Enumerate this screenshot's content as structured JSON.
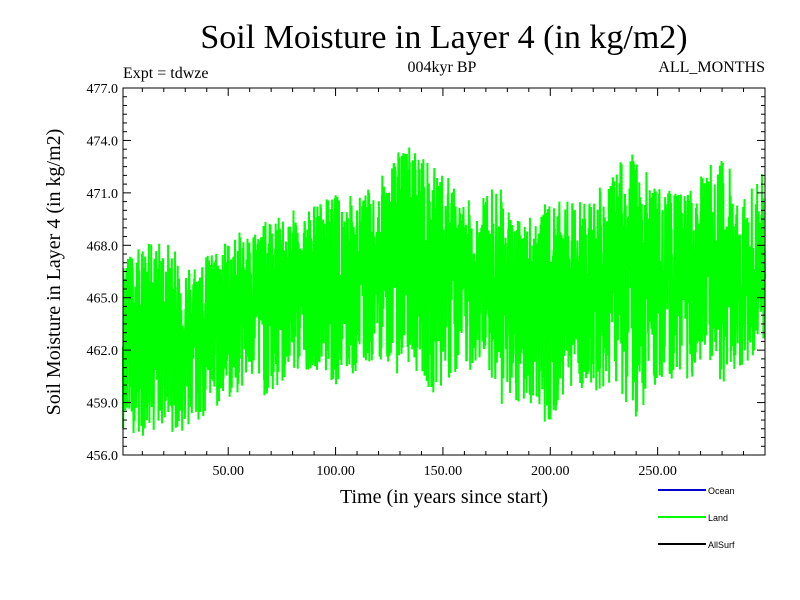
{
  "chart_data": {
    "type": "line",
    "title": "Soil Moisture in Layer 4 (in kg/m2)",
    "subtitle_left": "Expt = tdwze",
    "subtitle_center": "004kyr BP",
    "subtitle_right": "ALL_MONTHS",
    "xlabel": "Time (in years since start)",
    "ylabel": "Soil Moisture in Layer 4 (in kg/m2)",
    "xlim": [
      1,
      300
    ],
    "ylim": [
      456.0,
      477.0
    ],
    "x_ticks": [
      50,
      100,
      150,
      200,
      250
    ],
    "x_tick_labels": [
      "50.00",
      "100.00",
      "150.00",
      "200.00",
      "250.00"
    ],
    "y_ticks": [
      456,
      459,
      462,
      465,
      468,
      471,
      474,
      477
    ],
    "y_tick_labels": [
      "456.0",
      "459.0",
      "462.0",
      "465.0",
      "468.0",
      "471.0",
      "474.0",
      "477.0"
    ],
    "grid": false,
    "legend_position": "bottom-right",
    "legend": [
      {
        "name": "Ocean",
        "color": "#0000cc"
      },
      {
        "name": "Land",
        "color": "#00ff00"
      },
      {
        "name": "AllSurf",
        "color": "#000000"
      }
    ],
    "series": [
      {
        "name": "Land",
        "color": "#00ff00",
        "x_range": [
          1,
          300
        ],
        "envelope": {
          "x": [
            1,
            10,
            20,
            30,
            40,
            50,
            60,
            70,
            80,
            90,
            100,
            110,
            120,
            125,
            130,
            135,
            140,
            145,
            150,
            160,
            170,
            175,
            180,
            185,
            190,
            200,
            210,
            220,
            230,
            235,
            240,
            250,
            260,
            270,
            280,
            290,
            300
          ],
          "max": [
            467.5,
            468.0,
            468.5,
            467.0,
            467.5,
            468.5,
            469.0,
            469.5,
            470.0,
            470.5,
            471.0,
            471.0,
            471.5,
            473.0,
            473.5,
            474.0,
            473.5,
            472.5,
            472.5,
            470.5,
            471.0,
            472.0,
            470.5,
            469.5,
            470.0,
            470.5,
            470.5,
            471.0,
            472.0,
            474.2,
            473.0,
            471.5,
            471.0,
            472.0,
            473.5,
            471.0,
            472.5
          ],
          "min": [
            457.5,
            457.0,
            457.5,
            457.0,
            458.0,
            459.0,
            460.0,
            459.0,
            460.5,
            461.0,
            460.0,
            460.5,
            461.5,
            461.0,
            460.5,
            461.0,
            460.5,
            459.5,
            460.0,
            460.5,
            461.5,
            459.5,
            458.0,
            458.5,
            459.0,
            457.5,
            460.0,
            459.5,
            460.0,
            459.0,
            458.0,
            460.0,
            460.5,
            460.0,
            460.0,
            461.0,
            462.5
          ],
          "mean": [
            463.0,
            463.0,
            463.5,
            463.2,
            464.0,
            464.5,
            465.0,
            465.2,
            465.5,
            466.0,
            465.8,
            466.0,
            466.5,
            467.5,
            467.8,
            468.0,
            467.5,
            467.0,
            466.8,
            466.0,
            465.8,
            466.0,
            465.0,
            464.5,
            465.0,
            464.8,
            465.5,
            466.0,
            466.5,
            467.2,
            466.5,
            466.0,
            465.8,
            466.2,
            466.8,
            465.5,
            466.0
          ]
        }
      }
    ]
  }
}
